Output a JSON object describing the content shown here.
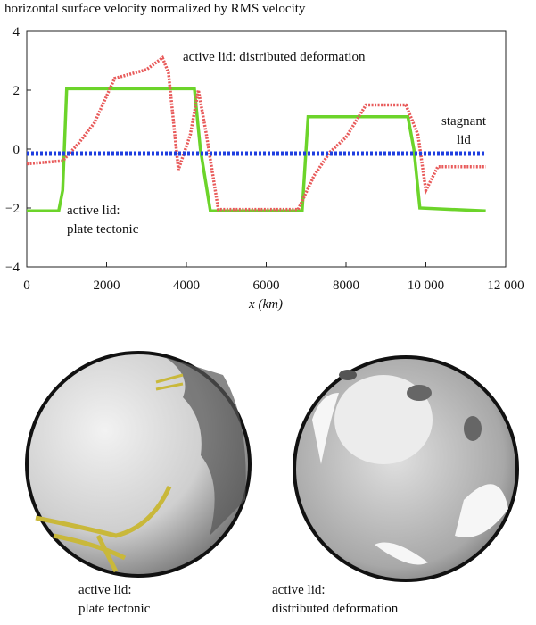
{
  "chart_data": {
    "type": "line",
    "title": "horizontal surface velocity normalized by RMS velocity",
    "xlabel": "x (km)",
    "xlim": [
      0,
      12000
    ],
    "xticks": [
      0,
      2000,
      4000,
      6000,
      8000,
      {
        "value": 10000,
        "label": "10 000"
      },
      {
        "value": 12000,
        "label": "12 000"
      }
    ],
    "ylim": [
      -4,
      4
    ],
    "yticks": [
      {
        "value": -4,
        "label": "−4"
      },
      {
        "value": -2,
        "label": "−2"
      },
      0,
      2,
      4
    ],
    "series": [
      {
        "label": [
          "active lid:",
          "plate tectonic"
        ],
        "color": "#6cd42a",
        "style": "solid",
        "x": [
          0,
          800,
          900,
          1000,
          4200,
          4350,
          4600,
          6900,
          7050,
          9550,
          9700,
          9850,
          11500
        ],
        "values": [
          -2.1,
          -2.1,
          -1.4,
          2.05,
          2.05,
          0,
          -2.1,
          -2.1,
          1.1,
          1.1,
          0,
          -2,
          -2.1
        ]
      },
      {
        "label": [
          "active lid: distributed deformation"
        ],
        "color": "#e85a5a",
        "style": "dotted",
        "x": [
          0,
          900,
          1300,
          1700,
          2200,
          3000,
          3400,
          3550,
          3800,
          4100,
          4300,
          4500,
          4800,
          6800,
          7200,
          7600,
          8000,
          8500,
          9500,
          9800,
          10000,
          10300,
          11500
        ],
        "values": [
          -0.5,
          -0.4,
          0.2,
          0.9,
          2.4,
          2.7,
          3.1,
          2.6,
          -0.7,
          0.5,
          2.0,
          0.5,
          -2.05,
          -2.05,
          -0.9,
          -0.1,
          0.4,
          1.5,
          1.5,
          0.5,
          -1.4,
          -0.6,
          -0.6
        ]
      },
      {
        "label": [
          "stagnant",
          "lid"
        ],
        "color": "#1f3fe0",
        "style": "dotted",
        "x": [
          0,
          11500
        ],
        "values": [
          -0.15,
          -0.15
        ]
      }
    ],
    "panels": [
      {
        "caption": [
          "active lid:",
          "plate tectonic"
        ]
      },
      {
        "caption": [
          "active lid:",
          "distributed deformation"
        ]
      }
    ]
  }
}
